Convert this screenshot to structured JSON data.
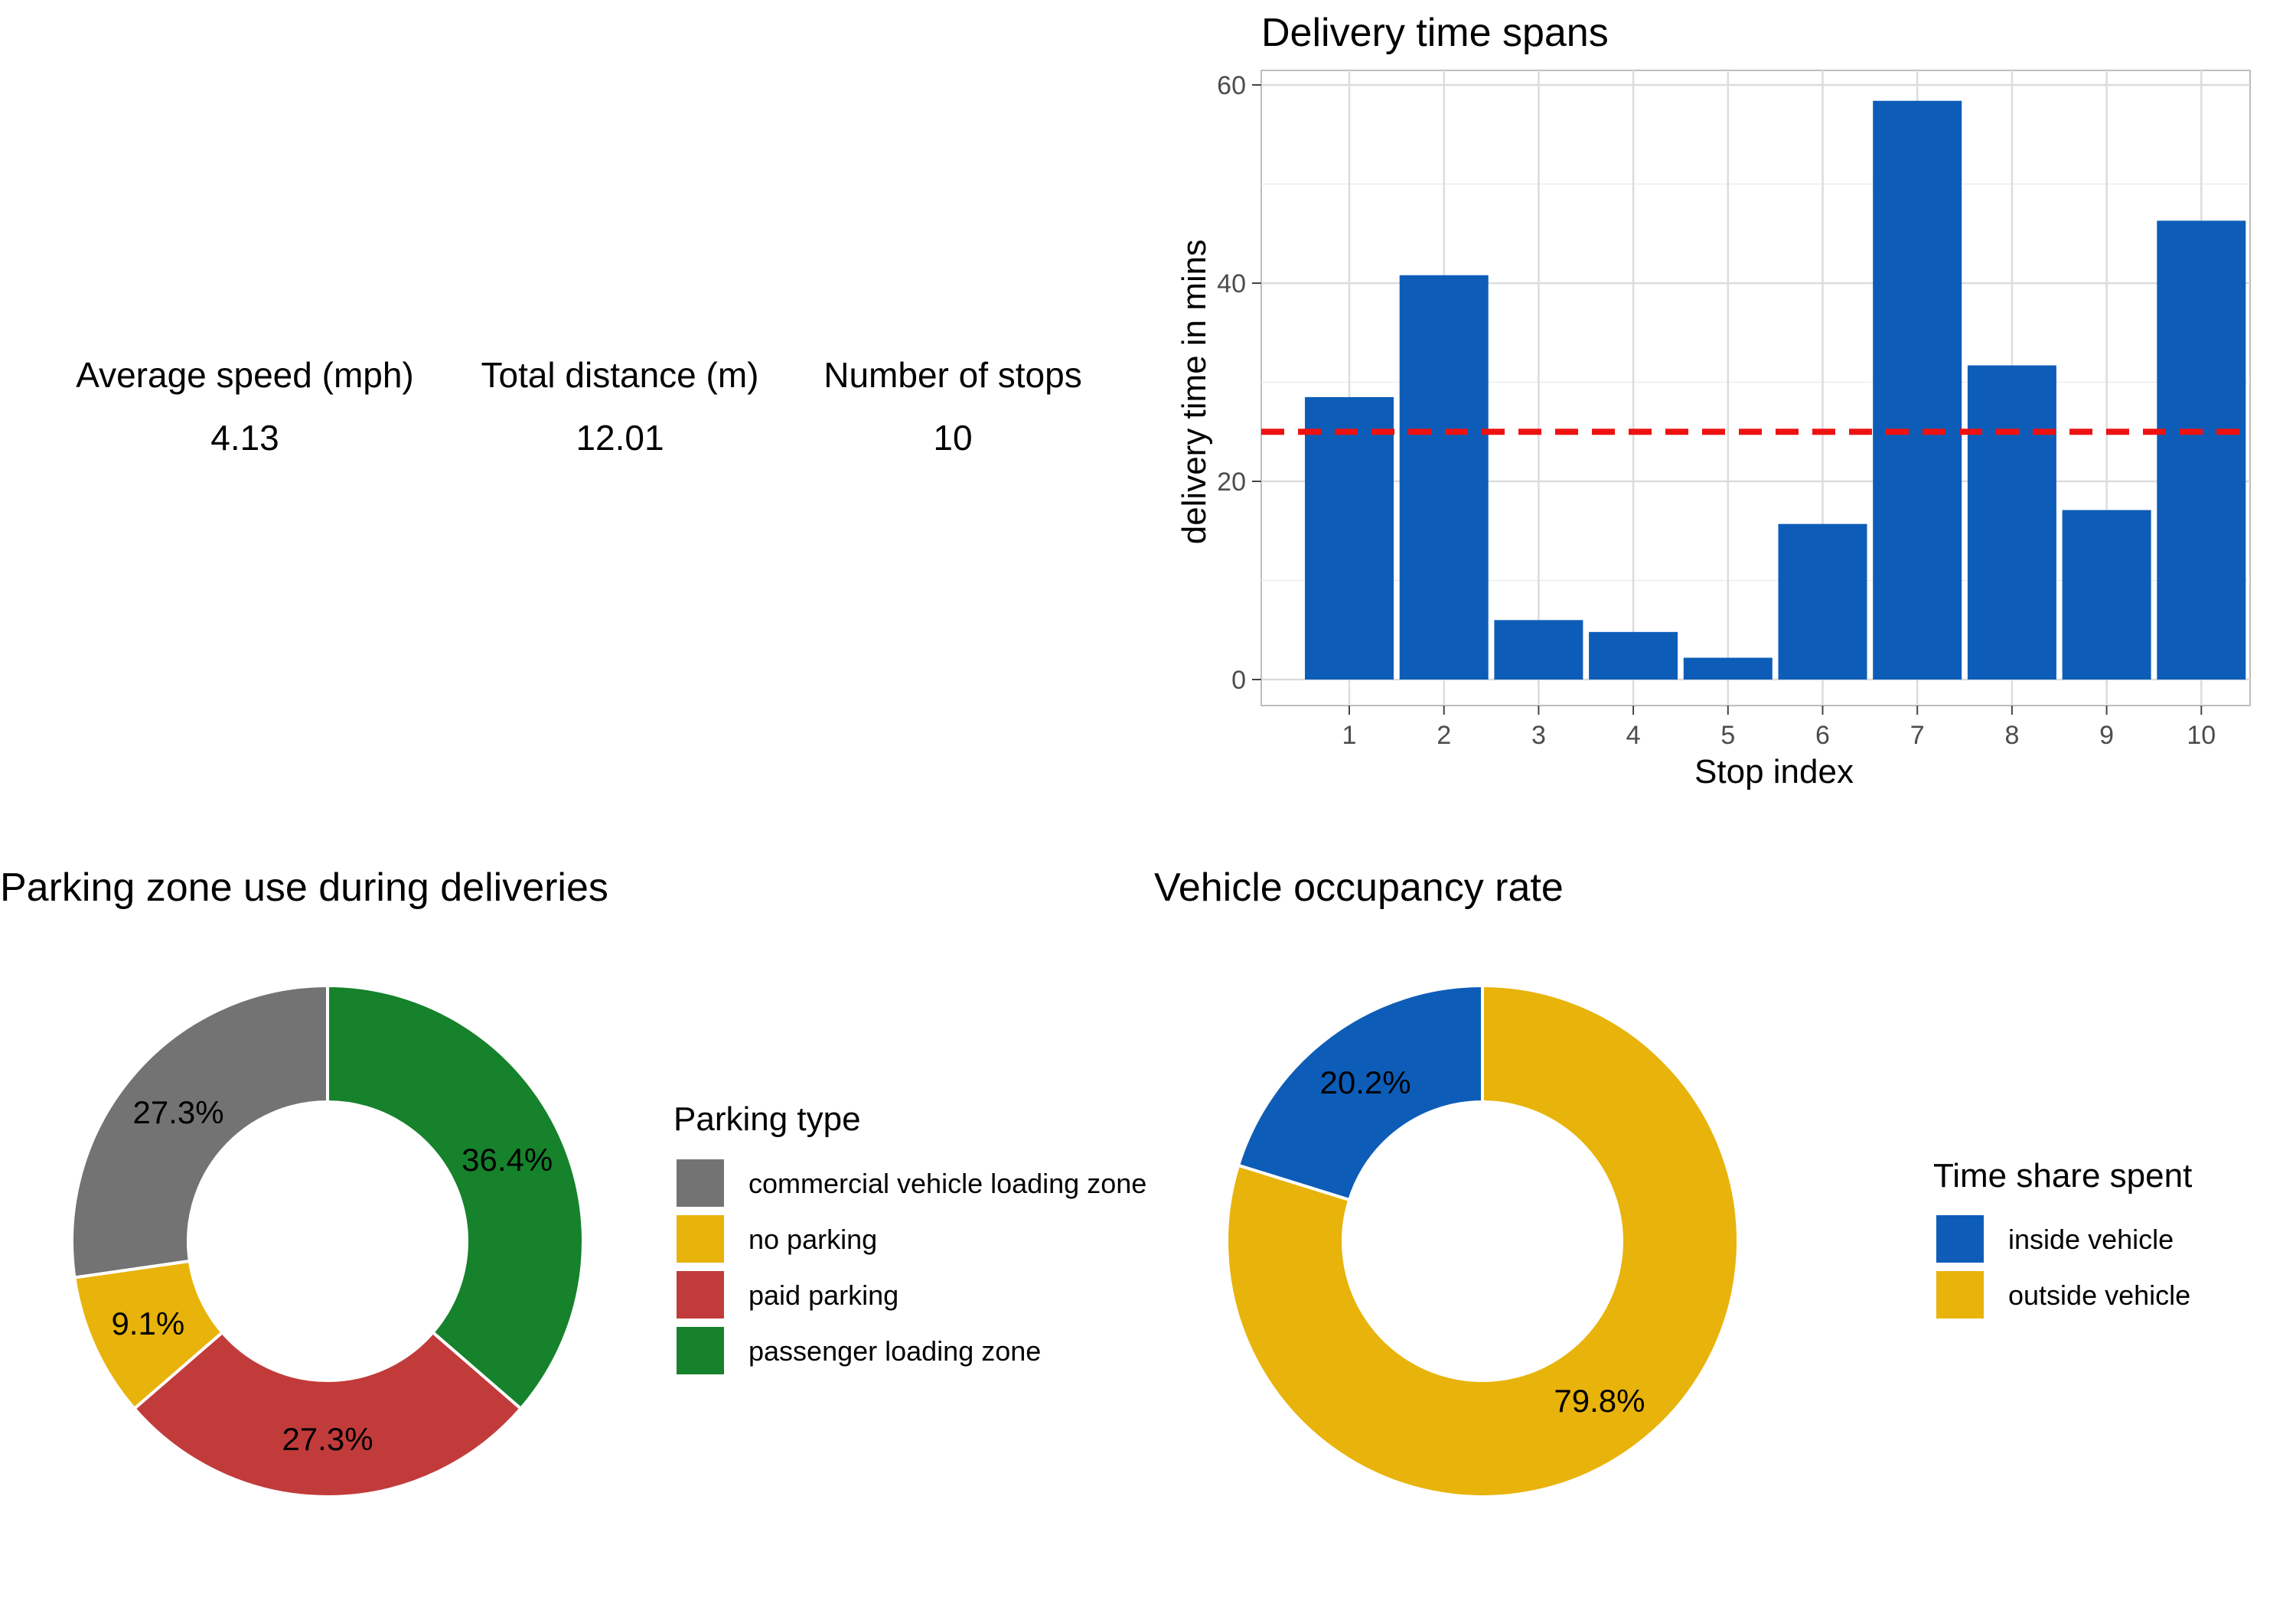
{
  "summary": {
    "stats": [
      {
        "label": "Average speed (mph)",
        "value": "4.13"
      },
      {
        "label": "Total distance (m)",
        "value": "12.01"
      },
      {
        "label": "Number of stops",
        "value": "10"
      }
    ]
  },
  "chart_data": [
    {
      "type": "bar",
      "title": "Delivery time spans",
      "xlabel": "Stop index",
      "ylabel": "delivery time in mins",
      "categories": [
        "1",
        "2",
        "3",
        "4",
        "5",
        "6",
        "7",
        "8",
        "9",
        "10"
      ],
      "values": [
        28.5,
        40.8,
        6.0,
        4.8,
        2.2,
        15.7,
        58.4,
        31.7,
        17.1,
        46.3
      ],
      "ylim": [
        0,
        60
      ],
      "yticks": [
        "0",
        "20",
        "40",
        "60"
      ],
      "reference_line": {
        "value": 25,
        "style": "dashed",
        "color": "#ee1111"
      },
      "bar_color": "#0d5db8",
      "grid": true
    },
    {
      "type": "pie",
      "donut": true,
      "title": "Parking zone use during deliveries",
      "legend_title": "Parking type",
      "legend_position": "right",
      "slices": [
        {
          "name": "passenger loading zone",
          "value": 36.4,
          "label": "36.4%",
          "color": "#16822b"
        },
        {
          "name": "paid parking",
          "value": 27.3,
          "label": "27.3%",
          "color": "#c23b3b"
        },
        {
          "name": "no parking",
          "value": 9.1,
          "label": "9.1%",
          "color": "#e8b30b"
        },
        {
          "name": "commercial vehicle loading zone",
          "value": 27.3,
          "label": "27.3%",
          "color": "#737373"
        }
      ],
      "legend_order": [
        "commercial vehicle loading zone",
        "no parking",
        "paid parking",
        "passenger loading zone"
      ]
    },
    {
      "type": "pie",
      "donut": true,
      "title": "Vehicle occupancy rate",
      "legend_title": "Time share spent",
      "legend_position": "right",
      "slices": [
        {
          "name": "outside vehicle",
          "value": 79.8,
          "label": "79.8%",
          "color": "#e8b30b"
        },
        {
          "name": "inside vehicle",
          "value": 20.2,
          "label": "20.2%",
          "color": "#0d5db8"
        }
      ],
      "legend_order": [
        "inside vehicle",
        "outside vehicle"
      ]
    }
  ]
}
